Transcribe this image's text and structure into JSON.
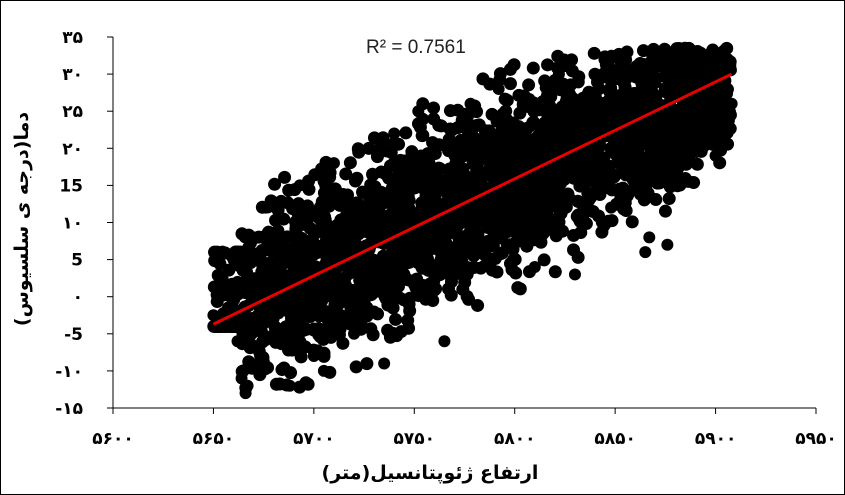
{
  "chart_data": {
    "type": "scatter",
    "xlabel": "ارتفاع ژئوپتانسیل(متر)",
    "ylabel": "دما(درجه ی سلسیوس)",
    "xlim": [
      5600,
      5950
    ],
    "ylim": [
      -15,
      35
    ],
    "x_ticks": [
      5600,
      5650,
      5700,
      5750,
      5800,
      5850,
      5900,
      5950
    ],
    "y_ticks": [
      -15,
      -10,
      -5,
      0,
      5,
      10,
      15,
      20,
      25,
      30,
      35
    ],
    "x_tick_labels": [
      "۵۶۰۰",
      "۵۶۵۰",
      "۵۷۰۰",
      "۵۷۵۰",
      "۵۸۰۰",
      "۵۸۵۰",
      "۵۹۰۰",
      "۵۹۵۰"
    ],
    "y_tick_labels": [
      "-۱۵",
      "-۱۰",
      "-5",
      "۰",
      "5",
      "۱۰",
      "15",
      "۲۰",
      "۲۵",
      "۳۰",
      "۳۵"
    ],
    "annotation": "R² = 0.7561",
    "r_squared": 0.7561,
    "trendline": {
      "x": [
        5650,
        5908
      ],
      "y": [
        -3.7,
        30.0
      ],
      "color": "#e60000"
    },
    "point_color": "#000000",
    "grid": false,
    "legend": "none",
    "series": [
      {
        "values": [
          [
            5650,
            -2.5
          ],
          [
            5662,
            -6
          ],
          [
            5664,
            -11
          ],
          [
            5666,
            -13
          ],
          [
            5667,
            -12
          ],
          [
            5660,
            5
          ],
          [
            5662,
            2
          ],
          [
            5670,
            8
          ],
          [
            5676,
            12
          ],
          [
            5680,
            -1
          ],
          [
            5686,
            -4
          ],
          [
            5688,
            -12
          ],
          [
            5693,
            15
          ],
          [
            5695,
            4
          ],
          [
            5700,
            -8
          ],
          [
            5705,
            -10
          ],
          [
            5710,
            18
          ],
          [
            5713,
            0
          ],
          [
            5720,
            -5
          ],
          [
            5722,
            20
          ],
          [
            5730,
            8
          ],
          [
            5735,
            -9
          ],
          [
            5740,
            22
          ],
          [
            5745,
            3
          ],
          [
            5752,
            25
          ],
          [
            5760,
            10
          ],
          [
            5765,
            -6
          ],
          [
            5770,
            19
          ],
          [
            5778,
            26
          ],
          [
            5785,
            12
          ],
          [
            5792,
            28
          ],
          [
            5800,
            5
          ],
          [
            5808,
            23
          ],
          [
            5810,
            4
          ],
          [
            5822,
            30
          ],
          [
            5825,
            18
          ],
          [
            5830,
            3
          ],
          [
            5840,
            27
          ],
          [
            5848,
            12
          ],
          [
            5855,
            31
          ],
          [
            5860,
            15
          ],
          [
            5865,
            6
          ],
          [
            5867,
            8
          ],
          [
            5872,
            33
          ],
          [
            5876,
            7
          ],
          [
            5882,
            29
          ],
          [
            5885,
            16
          ],
          [
            5890,
            32
          ],
          [
            5895,
            22
          ],
          [
            5900,
            19
          ],
          [
            5905,
            28
          ],
          [
            5908,
            26
          ],
          [
            5705,
            14
          ],
          [
            5740,
            15
          ],
          [
            5780,
            18
          ],
          [
            5815,
            20
          ]
        ]
      }
    ]
  }
}
